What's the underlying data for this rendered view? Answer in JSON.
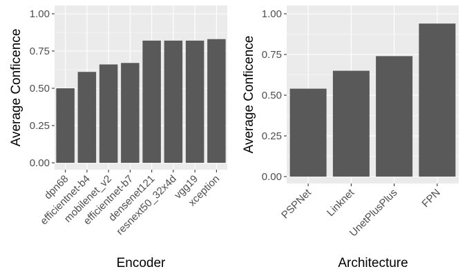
{
  "chart_data": [
    {
      "type": "bar",
      "title": "",
      "xlabel": "Encoder",
      "ylabel": "Average Conficence",
      "categories": [
        "dpn68",
        "efficientnet-b4",
        "mobilenet_v2",
        "efficientnet-b7",
        "densenet121",
        "resnext50_32x4d",
        "vgg19",
        "xception"
      ],
      "values": [
        0.5,
        0.61,
        0.66,
        0.67,
        0.82,
        0.82,
        0.82,
        0.83
      ],
      "ylim": [
        0,
        1.0
      ],
      "yticks": [
        "0.00",
        "0.25",
        "0.50",
        "0.75",
        "1.00"
      ],
      "grid": true,
      "bar_color": "#595959",
      "panel_color": "#ebebeb"
    },
    {
      "type": "bar",
      "title": "",
      "xlabel": "Architecture",
      "ylabel": "Average Conficence",
      "categories": [
        "PSPNet",
        "Linknet",
        "UnetPlusPlus",
        "FPN"
      ],
      "values": [
        0.54,
        0.65,
        0.74,
        0.94
      ],
      "ylim": [
        0,
        1.0
      ],
      "yticks": [
        "0.00",
        "0.25",
        "0.50",
        "0.75",
        "1.00"
      ],
      "grid": true,
      "bar_color": "#595959",
      "panel_color": "#ebebeb"
    }
  ]
}
